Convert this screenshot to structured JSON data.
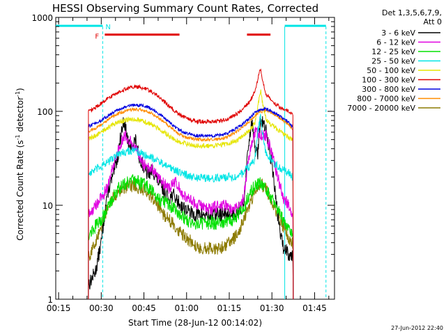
{
  "chart_data": {
    "type": "line",
    "title": "HESSI Observing Summary Count Rates, Corrected",
    "xlabel": "Start Time (28-Jun-12 00:14:02)",
    "ylabel_main": "Corrected Count Rate (s",
    "ylabel_sup1": "-1",
    "ylabel_mid": " detector",
    "ylabel_sup2": "-1",
    "ylabel_end": ")",
    "y_scale": "log",
    "ylim": [
      1,
      1000
    ],
    "xlim_min": [
      14,
      112
    ],
    "x_ticks": [
      {
        "min": 15,
        "label": "00:15"
      },
      {
        "min": 30,
        "label": "00:30"
      },
      {
        "min": 45,
        "label": "00:45"
      },
      {
        "min": 60,
        "label": "01:00"
      },
      {
        "min": 75,
        "label": "01:15"
      },
      {
        "min": 90,
        "label": "01:30"
      },
      {
        "min": 105,
        "label": "01:45"
      }
    ],
    "y_ticks": [
      {
        "value": 1,
        "label": "1"
      },
      {
        "value": 10,
        "label": "10"
      },
      {
        "value": 100,
        "label": "100"
      },
      {
        "value": 1000,
        "label": "1000"
      }
    ],
    "legend_header": [
      "Det 1,3,5,6,7,9,",
      "Att 0"
    ],
    "legend_position": "right",
    "timestamp": "27-Jun-2012 22:40",
    "flags": {
      "night": {
        "label": "N",
        "color": "#00e5e5",
        "intervals": [
          [
            14,
            30.5
          ],
          [
            94.5,
            109
          ]
        ],
        "y_value": 800
      },
      "flare": {
        "label": "F",
        "color": "#e00000",
        "intervals": [
          [
            30.5,
            57.5
          ],
          [
            80.5,
            89.5
          ]
        ],
        "y_value": 800
      },
      "dashed_lines_min": [
        30.5,
        109
      ],
      "solid_lines_min": [
        94.5
      ]
    },
    "t_on": 25.5,
    "t_off": 97.5,
    "series": [
      {
        "name": "3 - 6 keV",
        "color": "#000000",
        "x": [
          26,
          28,
          30,
          32,
          34,
          36,
          37,
          38,
          39,
          40,
          41,
          42,
          43,
          44,
          45,
          46,
          47,
          48,
          50,
          52,
          54,
          55,
          56,
          58,
          60,
          62,
          64,
          66,
          68,
          70,
          72,
          74,
          76,
          78,
          80,
          81,
          82,
          83,
          84,
          85,
          86,
          87,
          88,
          89,
          90,
          91,
          92,
          93,
          94,
          95,
          96,
          97
        ],
        "y": [
          1.5,
          2,
          4,
          13,
          20,
          35,
          60,
          80,
          55,
          40,
          45,
          50,
          35,
          30,
          25,
          22,
          22,
          24,
          18,
          14,
          12,
          13,
          12,
          10,
          9,
          8,
          8,
          8,
          7.5,
          8,
          8,
          8,
          8,
          9,
          10,
          25,
          50,
          85,
          40,
          35,
          80,
          75,
          60,
          40,
          28,
          15,
          8,
          5,
          3.5,
          3.5,
          3,
          3
        ]
      },
      {
        "name": "6 - 12 keV",
        "color": "#e000e0",
        "x": [
          26,
          28,
          30,
          32,
          34,
          36,
          38,
          40,
          42,
          44,
          46,
          48,
          50,
          52,
          54,
          56,
          58,
          60,
          62,
          64,
          66,
          68,
          70,
          72,
          74,
          76,
          78,
          80,
          82,
          84,
          86,
          88,
          89,
          90,
          92,
          94,
          96,
          97
        ],
        "y": [
          8,
          10,
          12,
          15,
          25,
          40,
          55,
          50,
          40,
          30,
          25,
          25,
          20,
          17,
          15,
          18,
          14,
          12,
          11,
          10,
          10,
          9,
          9.5,
          10,
          10,
          9,
          9.5,
          12,
          35,
          60,
          55,
          55,
          45,
          35,
          20,
          12,
          10,
          8
        ]
      },
      {
        "name": "12 - 25 keV",
        "color": "#00e000",
        "x": [
          26,
          28,
          30,
          32,
          34,
          36,
          38,
          40,
          42,
          44,
          46,
          48,
          50,
          52,
          54,
          56,
          58,
          60,
          62,
          64,
          66,
          68,
          70,
          72,
          74,
          76,
          78,
          80,
          82,
          84,
          86,
          88,
          90,
          92,
          94,
          96,
          97
        ],
        "y": [
          5,
          6,
          7,
          9,
          12,
          15,
          17,
          18,
          18,
          17,
          16,
          14,
          12,
          11,
          10,
          9,
          8,
          7,
          6.5,
          6.5,
          6.5,
          6.5,
          6.5,
          6.5,
          6.5,
          7,
          8,
          9,
          13,
          16,
          17,
          15,
          12,
          9,
          7,
          6,
          5
        ]
      },
      {
        "name": "25 - 50 keV",
        "color": "#00e5e5",
        "x": [
          26,
          28,
          30,
          32,
          34,
          36,
          38,
          40,
          42,
          44,
          46,
          48,
          50,
          52,
          54,
          56,
          58,
          60,
          62,
          64,
          66,
          68,
          70,
          72,
          74,
          76,
          78,
          80,
          82,
          84,
          85,
          86,
          87,
          88,
          90,
          92,
          94,
          96,
          97
        ],
        "y": [
          22,
          24,
          26,
          28,
          32,
          35,
          37,
          38,
          38,
          36,
          34,
          32,
          30,
          27,
          25,
          24,
          22,
          21,
          20,
          19.5,
          19.5,
          19.5,
          19.5,
          19.5,
          20,
          20,
          21,
          22,
          26,
          30,
          60,
          90,
          50,
          35,
          30,
          26,
          24,
          22,
          20
        ]
      },
      {
        "name": "50 - 100 keV",
        "color": "#e5e500",
        "x": [
          26,
          28,
          30,
          32,
          34,
          36,
          38,
          40,
          42,
          44,
          46,
          48,
          50,
          52,
          54,
          56,
          58,
          60,
          62,
          64,
          66,
          68,
          70,
          72,
          74,
          76,
          78,
          80,
          82,
          84,
          85,
          86,
          87,
          88,
          90,
          92,
          94,
          96,
          97
        ],
        "y": [
          52,
          55,
          60,
          66,
          72,
          77,
          80,
          82,
          82,
          80,
          76,
          72,
          66,
          60,
          54,
          50,
          47,
          45,
          44,
          43,
          43,
          43,
          43,
          44,
          45,
          47,
          50,
          55,
          62,
          75,
          110,
          170,
          110,
          80,
          72,
          64,
          58,
          53,
          50
        ]
      },
      {
        "name": "100 - 300 keV",
        "color": "#e00000",
        "x": [
          26,
          28,
          30,
          32,
          34,
          36,
          38,
          40,
          42,
          44,
          46,
          48,
          50,
          52,
          54,
          56,
          58,
          60,
          62,
          64,
          66,
          68,
          70,
          72,
          74,
          76,
          78,
          80,
          82,
          84,
          85,
          86,
          87,
          88,
          90,
          92,
          94,
          96,
          97
        ],
        "y": [
          100,
          110,
          122,
          135,
          148,
          160,
          170,
          178,
          182,
          180,
          172,
          160,
          145,
          128,
          112,
          100,
          90,
          84,
          80,
          78,
          78,
          78,
          78,
          79,
          82,
          87,
          95,
          108,
          125,
          160,
          220,
          280,
          200,
          150,
          130,
          115,
          105,
          100,
          95
        ]
      },
      {
        "name": "300 - 800 keV",
        "color": "#0000e0",
        "x": [
          26,
          28,
          30,
          32,
          34,
          36,
          38,
          40,
          42,
          44,
          46,
          48,
          50,
          52,
          54,
          56,
          58,
          60,
          62,
          64,
          66,
          68,
          70,
          72,
          74,
          76,
          78,
          80,
          82,
          84,
          86,
          88,
          90,
          92,
          94,
          96,
          97
        ],
        "y": [
          70,
          75,
          80,
          88,
          96,
          104,
          110,
          115,
          117,
          116,
          112,
          105,
          96,
          86,
          76,
          68,
          62,
          58,
          56,
          55,
          55,
          55,
          55,
          56,
          58,
          62,
          67,
          74,
          84,
          96,
          105,
          106,
          100,
          92,
          84,
          76,
          70
        ]
      },
      {
        "name": "800 - 7000 keV",
        "color": "#ff8c00",
        "x": [
          26,
          28,
          30,
          32,
          34,
          36,
          38,
          40,
          42,
          44,
          46,
          48,
          50,
          52,
          54,
          56,
          58,
          60,
          62,
          64,
          66,
          68,
          70,
          72,
          74,
          76,
          78,
          80,
          82,
          84,
          86,
          88,
          90,
          92,
          94,
          96,
          97
        ],
        "y": [
          62,
          66,
          72,
          80,
          88,
          95,
          100,
          104,
          105,
          104,
          100,
          94,
          86,
          77,
          69,
          62,
          56,
          53,
          51,
          50,
          50,
          50,
          50,
          51,
          53,
          57,
          62,
          69,
          78,
          90,
          100,
          102,
          96,
          88,
          80,
          72,
          66
        ]
      },
      {
        "name": "7000 - 20000 keV",
        "color": "#8c7a00",
        "x": [
          26,
          28,
          30,
          32,
          34,
          36,
          38,
          40,
          42,
          44,
          46,
          48,
          50,
          52,
          54,
          56,
          58,
          60,
          62,
          64,
          66,
          68,
          70,
          72,
          74,
          76,
          78,
          80,
          82,
          84,
          86,
          88,
          90,
          92,
          94,
          96,
          97
        ],
        "y": [
          3,
          4,
          6,
          9,
          12,
          14,
          15,
          16,
          16,
          15,
          14,
          12,
          10,
          8,
          7,
          6,
          5,
          4.5,
          4,
          3.5,
          3.5,
          3.5,
          3.5,
          3.5,
          3.8,
          4.2,
          5,
          7,
          10,
          14,
          17,
          15,
          11,
          8,
          6,
          4.5,
          4
        ]
      }
    ]
  }
}
